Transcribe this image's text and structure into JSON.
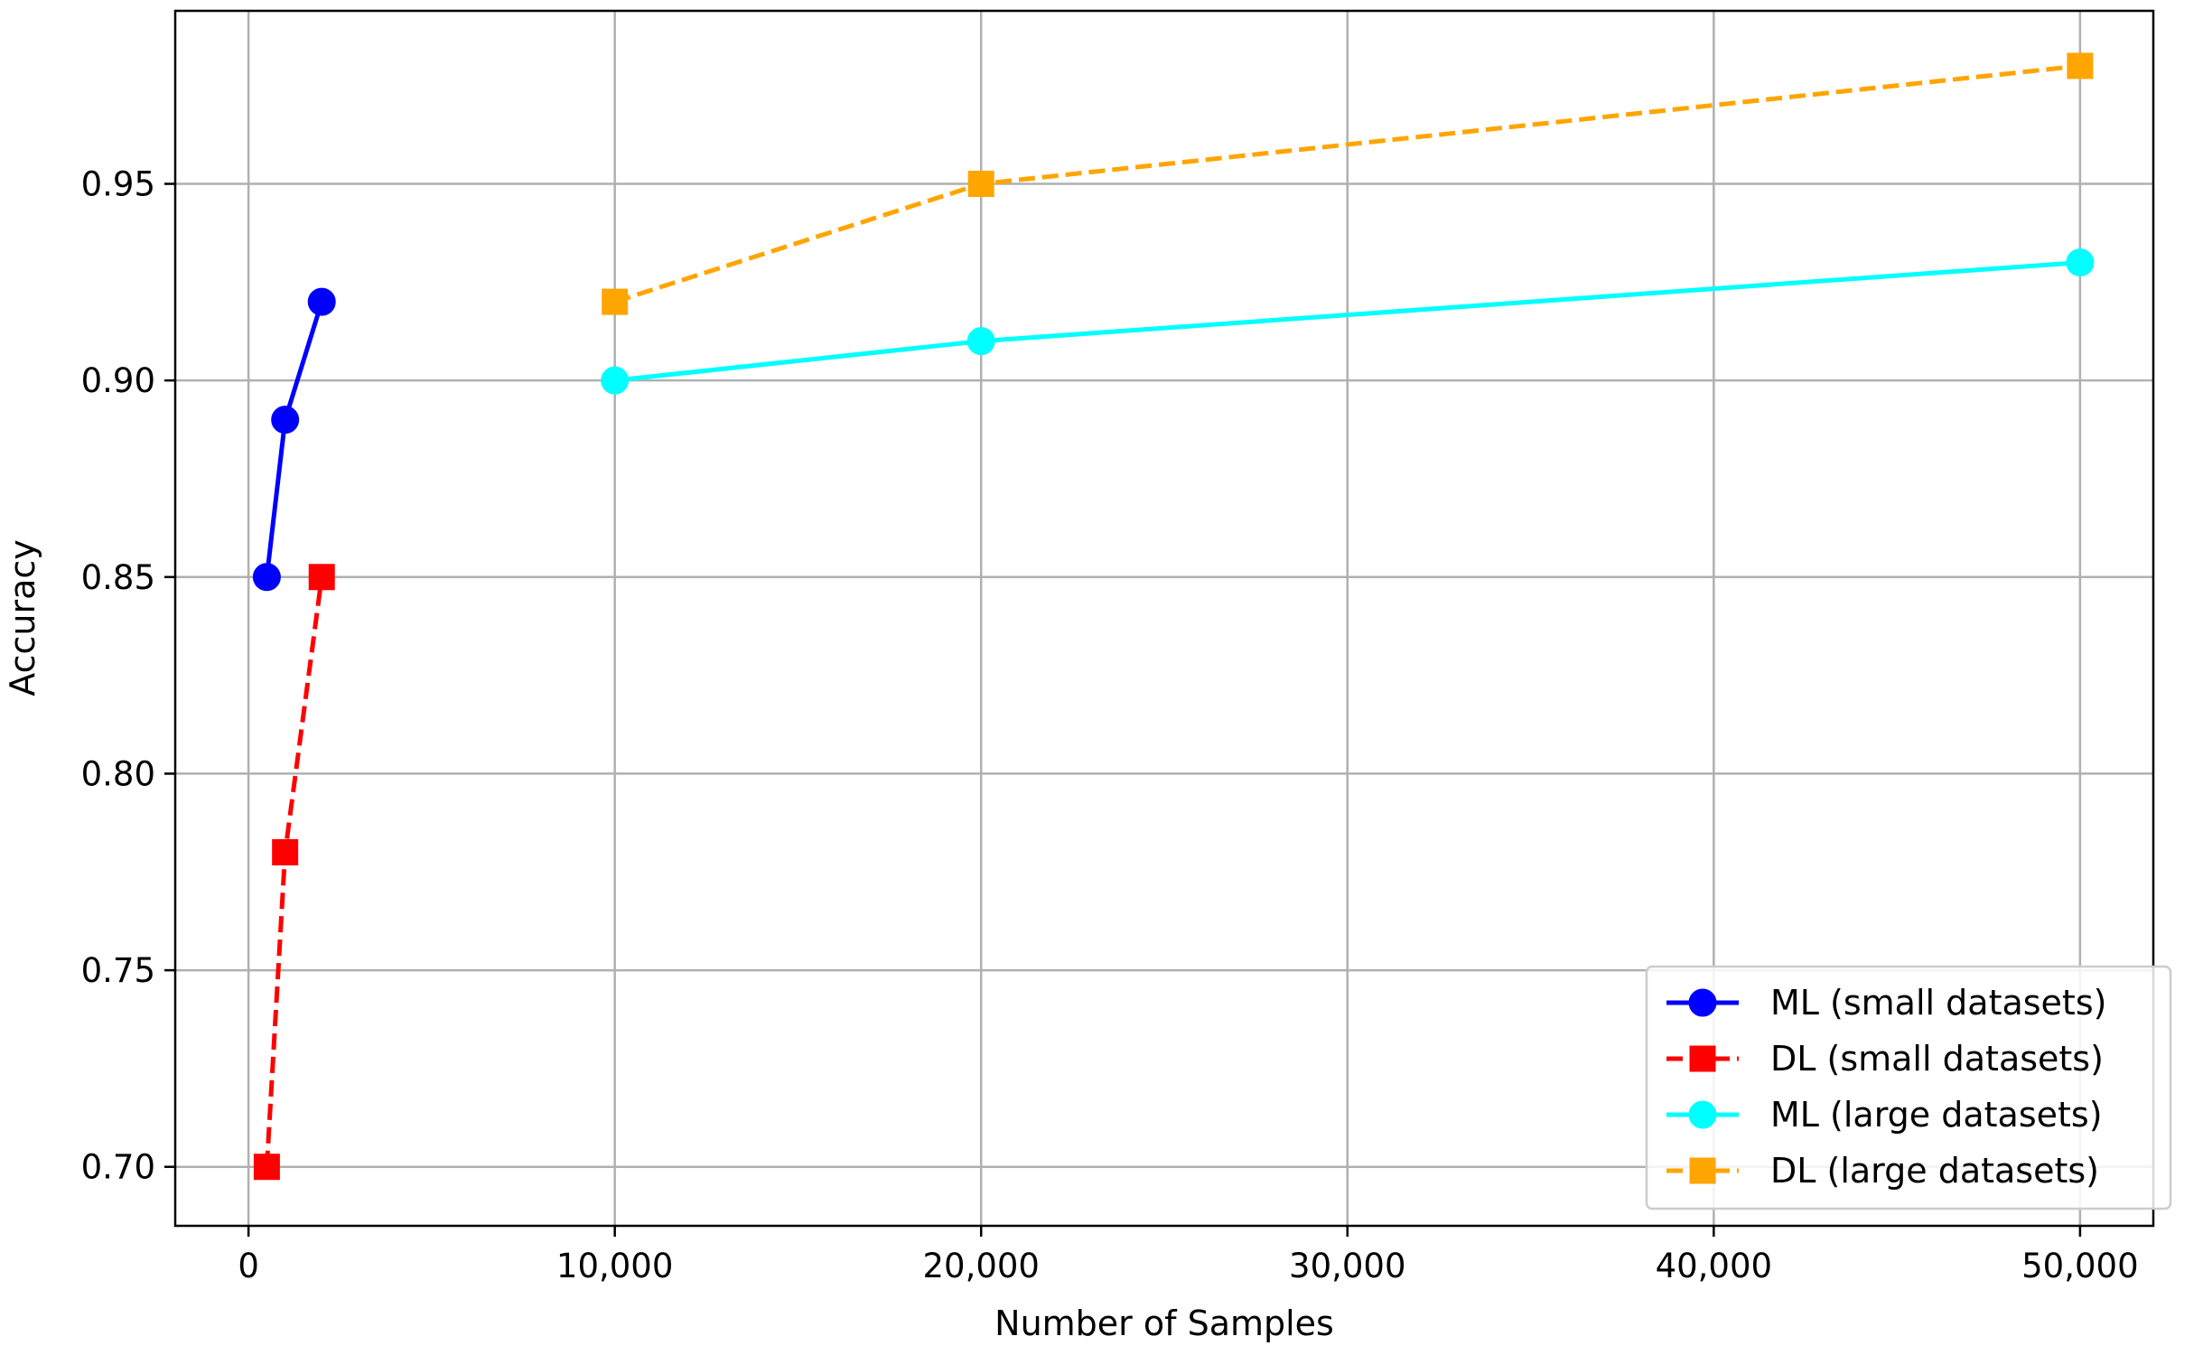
{
  "chart_data": {
    "type": "line",
    "title": "",
    "xlabel": "Number of Samples",
    "ylabel": "Accuracy",
    "xlim": [
      -2000,
      52000
    ],
    "ylim": [
      0.685,
      0.994
    ],
    "x_ticks": [
      0,
      10000,
      20000,
      30000,
      40000,
      50000
    ],
    "x_tick_labels": [
      "0",
      "10,000",
      "20,000",
      "30,000",
      "40,000",
      "50,000"
    ],
    "y_ticks": [
      0.7,
      0.75,
      0.8,
      0.85,
      0.9,
      0.95
    ],
    "y_tick_labels": [
      "0.70",
      "0.75",
      "0.80",
      "0.85",
      "0.90",
      "0.95"
    ],
    "grid": true,
    "legend_position": "lower right",
    "series": [
      {
        "name": "ML (small datasets)",
        "x": [
          500,
          1000,
          2000
        ],
        "y": [
          0.85,
          0.89,
          0.92
        ],
        "color": "#0000ff",
        "marker": "circle",
        "linestyle": "solid"
      },
      {
        "name": "DL (small datasets)",
        "x": [
          500,
          1000,
          2000
        ],
        "y": [
          0.7,
          0.78,
          0.85
        ],
        "color": "#ff0000",
        "marker": "square",
        "linestyle": "dashed"
      },
      {
        "name": "ML (large datasets)",
        "x": [
          10000,
          20000,
          50000
        ],
        "y": [
          0.9,
          0.91,
          0.93
        ],
        "color": "#00ffff",
        "marker": "circle",
        "linestyle": "solid"
      },
      {
        "name": "DL (large datasets)",
        "x": [
          10000,
          20000,
          50000
        ],
        "y": [
          0.92,
          0.95,
          0.98
        ],
        "color": "#ffa500",
        "marker": "square",
        "linestyle": "dashed"
      }
    ]
  }
}
